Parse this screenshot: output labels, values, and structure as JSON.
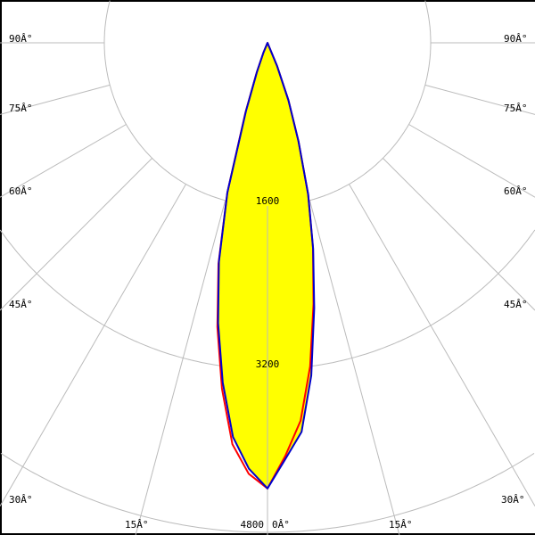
{
  "chart_data": {
    "type": "polar",
    "angle_unit_label": "Â°",
    "angle_labels": [
      {
        "angle": 90,
        "text": "90Â°"
      },
      {
        "angle": 75,
        "text": "75Â°"
      },
      {
        "angle": 60,
        "text": "60Â°"
      },
      {
        "angle": 45,
        "text": "45Â°"
      },
      {
        "angle": 30,
        "text": "30Â°"
      },
      {
        "angle": 15,
        "text": "15Â°"
      },
      {
        "angle": 0,
        "text": "0Â°"
      }
    ],
    "radial_ticks": [
      1600,
      3200,
      4800
    ],
    "radial_tick_labels": [
      "1600",
      "3200",
      "4800"
    ],
    "angles": [
      0,
      2.5,
      5,
      7.5,
      10,
      12.5,
      15,
      17.5,
      20,
      22.5,
      25
    ],
    "series": [
      {
        "color": "#ff0000",
        "left": [
          4370,
          4230,
          3950,
          3420,
          2830,
          2220,
          1520,
          720,
          310,
          100,
          0
        ],
        "right": [
          4370,
          4050,
          3720,
          3200,
          2600,
          2060,
          1540,
          1010,
          600,
          250,
          0
        ]
      },
      {
        "color": "#0000cc",
        "left": [
          4370,
          4180,
          3880,
          3360,
          2790,
          2200,
          1520,
          700,
          300,
          100,
          0
        ],
        "right": [
          4370,
          4080,
          3830,
          3290,
          2640,
          2070,
          1540,
          1010,
          600,
          250,
          0
        ]
      }
    ],
    "fill_color": "#ffff00",
    "grid_color": "#bbbbbb",
    "grid": true
  }
}
